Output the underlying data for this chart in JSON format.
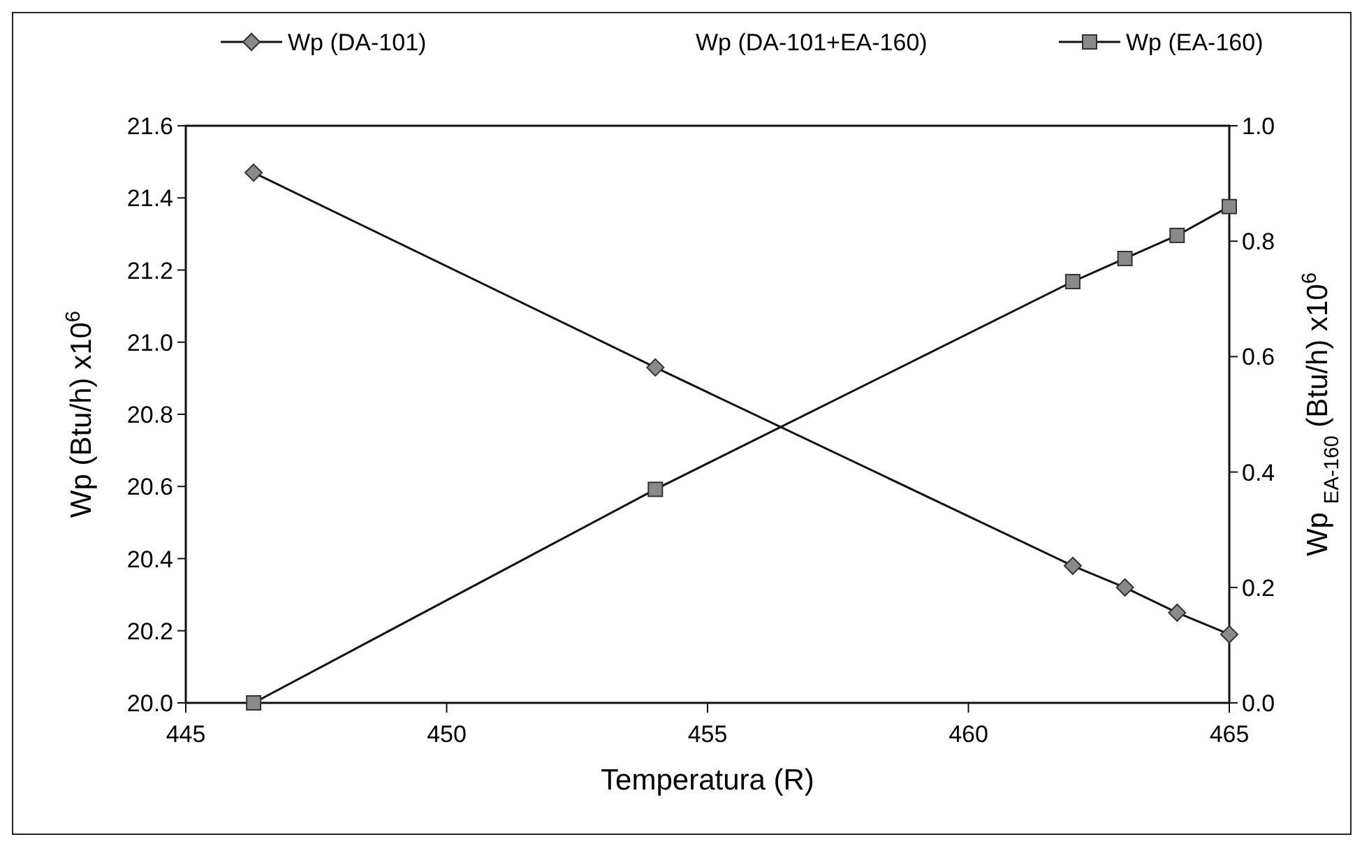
{
  "chart_data": {
    "type": "line",
    "xlabel": "Temperatura (R)",
    "ylabel": "Wp (Btu/h) x10$^{6}$",
    "y2label": "Wp $_{EA-160}$ (Btu/h) x10$^{6}$",
    "x": [
      446.3,
      454,
      462,
      463,
      464,
      465
    ],
    "xlim": [
      445,
      465
    ],
    "xticks": [
      445,
      450,
      455,
      460,
      465
    ],
    "ylim": [
      20.0,
      21.6
    ],
    "yticks": [
      {
        "value": 20.0,
        "label": "20.0"
      },
      {
        "value": 20.2,
        "label": "20.2"
      },
      {
        "value": 20.4,
        "label": "20.4"
      },
      {
        "value": 20.6,
        "label": "20.6"
      },
      {
        "value": 20.8,
        "label": "20.8"
      },
      {
        "value": 21.0,
        "label": "21.0"
      },
      {
        "value": 21.2,
        "label": "21.2"
      },
      {
        "value": 21.4,
        "label": "21.4"
      },
      {
        "value": 21.6,
        "label": "21.6"
      }
    ],
    "y2lim": [
      0.0,
      1.0
    ],
    "y2ticks": [
      {
        "value": 0,
        "label": "0.0"
      },
      {
        "value": 0.2,
        "label": "0.2"
      },
      {
        "value": 0.4,
        "label": "0.4"
      },
      {
        "value": 0.6,
        "label": "0.6"
      },
      {
        "value": 0.8,
        "label": "0.8"
      },
      {
        "value": 1,
        "label": "1.0"
      }
    ],
    "legend": "top",
    "grid": false,
    "line_style": "solid",
    "series": [
      {
        "name": "Wp (DA-101)",
        "color": "#8a8a8a",
        "marker": "diamond",
        "values": [
          21.47,
          20.93,
          20.38,
          20.32,
          20.25,
          20.19
        ]
      },
      {
        "name": "Wp (DA-101+EA-160)",
        "marker": "none",
        "values": [
          null,
          null,
          null,
          null,
          null,
          null
        ]
      },
      {
        "name": "Wp (EA-160)",
        "color": "#8a8a8a",
        "marker": "square",
        "axis": "y2",
        "values": [
          0.0,
          0.37,
          0.73,
          0.77,
          0.81,
          0.86
        ]
      }
    ]
  }
}
